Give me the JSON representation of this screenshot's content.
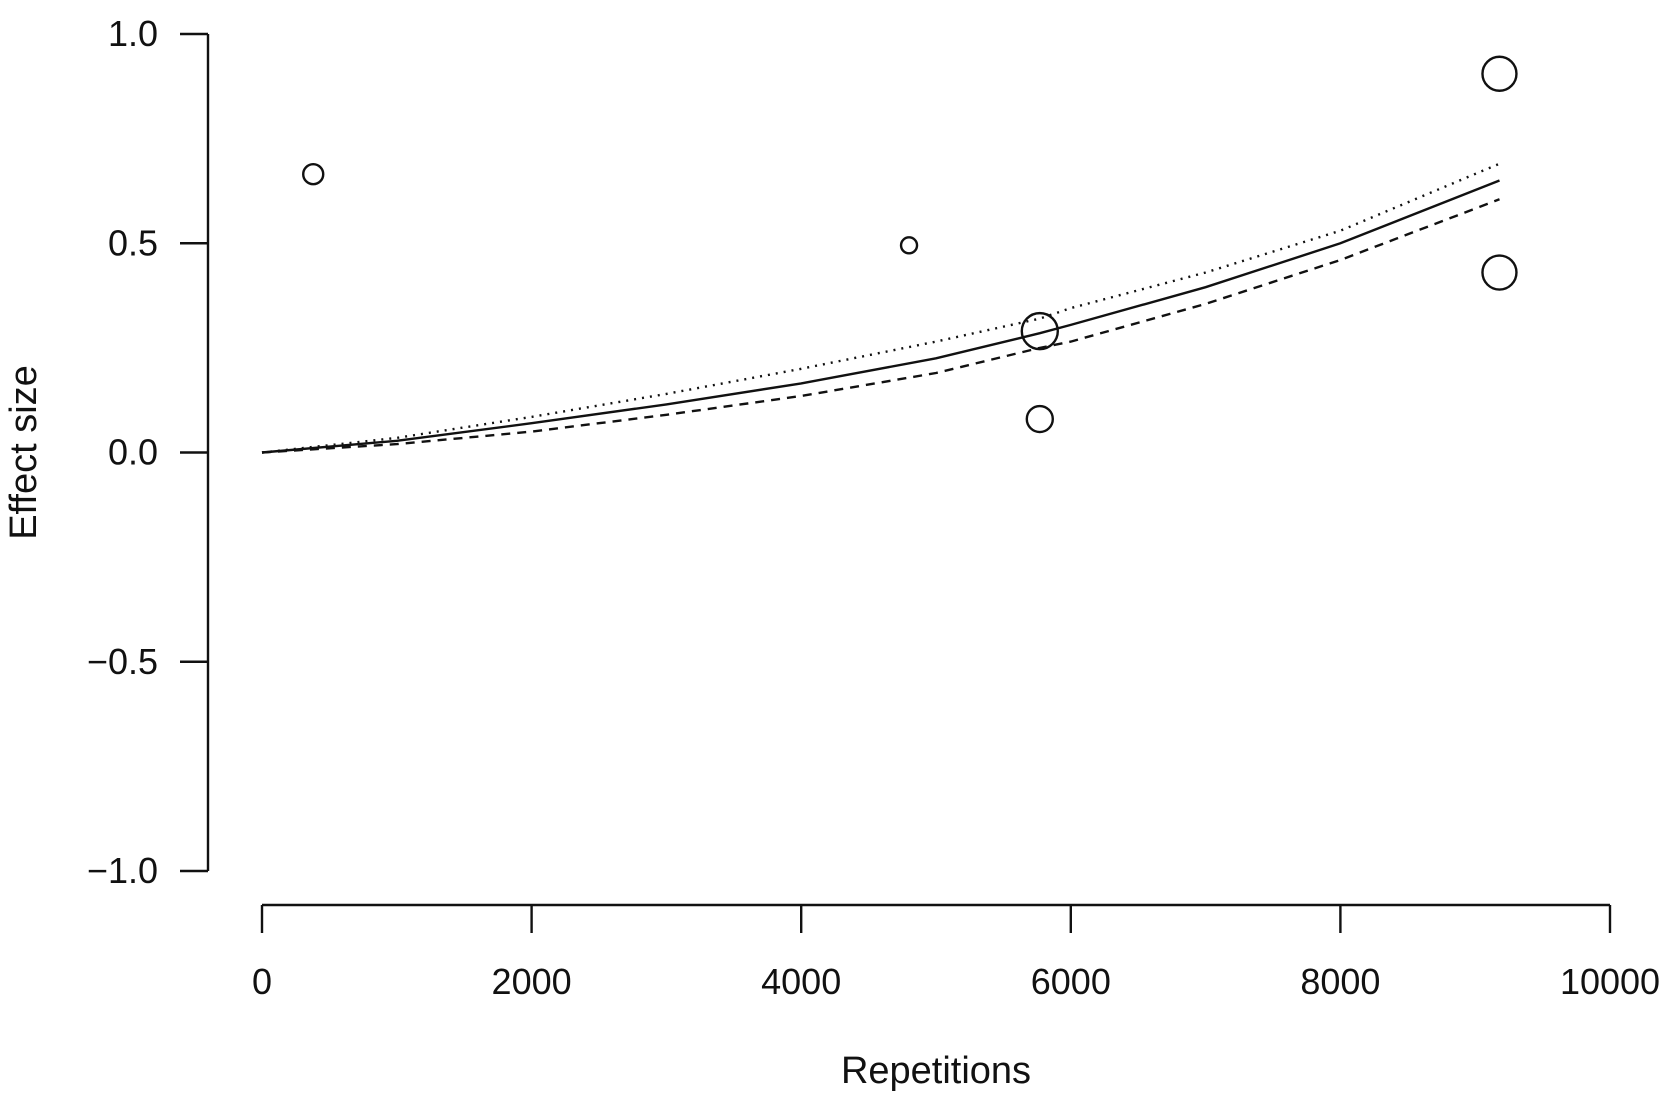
{
  "chart_data": {
    "type": "scatter",
    "title": "",
    "xlabel": "Repetitions",
    "ylabel": "Effect size",
    "xlim": [
      0,
      10000
    ],
    "ylim": [
      -1.0,
      1.0
    ],
    "x_ticks": [
      "0",
      "2000",
      "4000",
      "6000",
      "8000",
      "10000"
    ],
    "y_ticks": [
      "1.0",
      "0.5",
      "0.0",
      "−0.5",
      "−1.0"
    ],
    "grid": false,
    "legend": "none",
    "points": [
      {
        "x": 380,
        "y": 0.665,
        "size": 1.0
      },
      {
        "x": 4800,
        "y": 0.495,
        "size": 0.8
      },
      {
        "x": 5770,
        "y": 0.29,
        "size": 1.8
      },
      {
        "x": 5770,
        "y": 0.08,
        "size": 1.3
      },
      {
        "x": 9180,
        "y": 0.905,
        "size": 1.7
      },
      {
        "x": 9180,
        "y": 0.43,
        "size": 1.7
      }
    ],
    "series": [
      {
        "style": "solid",
        "x": [
          0,
          1000,
          2000,
          3000,
          4000,
          5000,
          5770,
          6000,
          7000,
          8000,
          9180
        ],
        "y": [
          0.0,
          0.028,
          0.07,
          0.115,
          0.165,
          0.225,
          0.285,
          0.305,
          0.395,
          0.5,
          0.65
        ]
      },
      {
        "style": "dashed",
        "x": [
          0,
          1000,
          2000,
          3000,
          4000,
          5000,
          5770,
          6000,
          7000,
          8000,
          9180
        ],
        "y": [
          0.0,
          0.02,
          0.05,
          0.09,
          0.135,
          0.19,
          0.25,
          0.265,
          0.355,
          0.46,
          0.605
        ]
      },
      {
        "style": "dotted",
        "x": [
          0,
          1000,
          2000,
          3000,
          4000,
          5000,
          5770,
          6000,
          7000,
          8000,
          9180
        ],
        "y": [
          0.0,
          0.035,
          0.085,
          0.14,
          0.2,
          0.265,
          0.32,
          0.345,
          0.43,
          0.53,
          0.69
        ]
      }
    ]
  }
}
